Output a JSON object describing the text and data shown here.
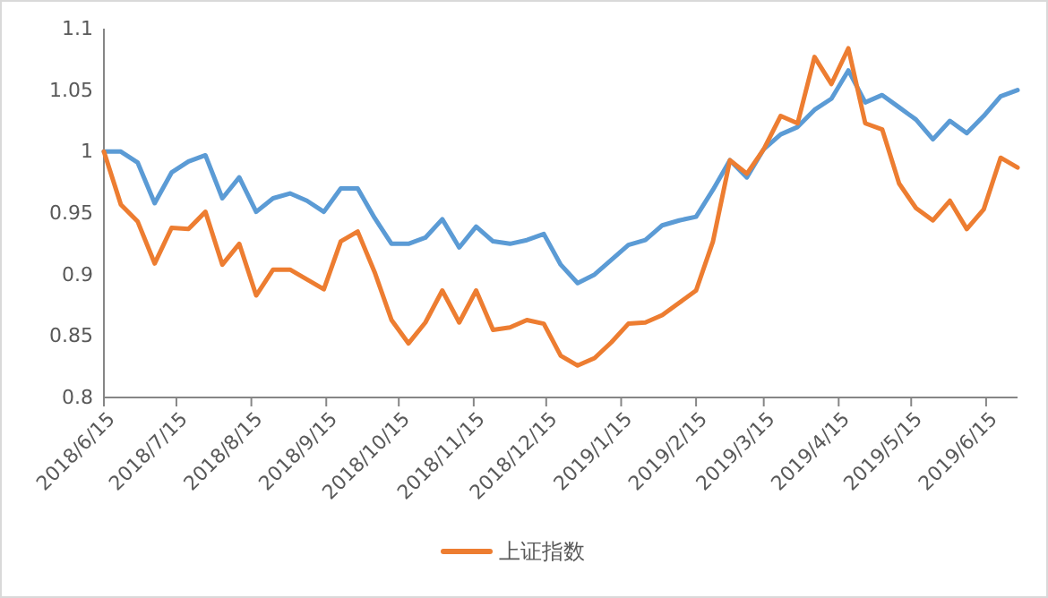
{
  "chart_data": {
    "type": "line",
    "x": [
      "2018-06-15",
      "2018-06-22",
      "2018-06-29",
      "2018-07-06",
      "2018-07-13",
      "2018-07-20",
      "2018-07-27",
      "2018-08-03",
      "2018-08-10",
      "2018-08-17",
      "2018-08-24",
      "2018-08-31",
      "2018-09-07",
      "2018-09-14",
      "2018-09-21",
      "2018-09-28",
      "2018-10-05",
      "2018-10-12",
      "2018-10-19",
      "2018-10-26",
      "2018-11-02",
      "2018-11-09",
      "2018-11-16",
      "2018-11-23",
      "2018-11-30",
      "2018-12-07",
      "2018-12-14",
      "2018-12-21",
      "2018-12-28",
      "2019-01-04",
      "2019-01-11",
      "2019-01-18",
      "2019-01-25",
      "2019-02-01",
      "2019-02-08",
      "2019-02-15",
      "2019-02-22",
      "2019-03-01",
      "2019-03-08",
      "2019-03-15",
      "2019-03-22",
      "2019-03-29",
      "2019-04-05",
      "2019-04-12",
      "2019-04-19",
      "2019-04-26",
      "2019-05-03",
      "2019-05-10",
      "2019-05-17",
      "2019-05-24",
      "2019-05-31",
      "2019-06-07",
      "2019-06-14",
      "2019-06-21",
      "2019-06-28"
    ],
    "series": [
      {
        "color": "#5b9bd5",
        "values": [
          1.0,
          1.0,
          0.991,
          0.958,
          0.983,
          0.992,
          0.997,
          0.962,
          0.979,
          0.951,
          0.962,
          0.966,
          0.96,
          0.951,
          0.97,
          0.97,
          0.946,
          0.925,
          0.925,
          0.93,
          0.945,
          0.922,
          0.939,
          0.927,
          0.925,
          0.928,
          0.933,
          0.908,
          0.893,
          0.9,
          0.912,
          0.924,
          0.928,
          0.94,
          0.944,
          0.947,
          0.969,
          0.993,
          0.979,
          1.002,
          1.014,
          1.02,
          1.034,
          1.043,
          1.066,
          1.04,
          1.046,
          1.036,
          1.026,
          1.01,
          1.025,
          1.015,
          1.029,
          1.045,
          1.05
        ]
      },
      {
        "name": "上证指数",
        "color": "#ed7d31",
        "values": [
          1.0,
          0.957,
          0.943,
          0.909,
          0.938,
          0.937,
          0.951,
          0.908,
          0.925,
          0.883,
          0.904,
          0.904,
          0.896,
          0.888,
          0.927,
          0.935,
          0.902,
          0.863,
          0.844,
          0.861,
          0.887,
          0.861,
          0.887,
          0.855,
          0.857,
          0.863,
          0.86,
          0.834,
          0.826,
          0.832,
          0.845,
          0.86,
          0.861,
          0.867,
          0.877,
          0.887,
          0.927,
          0.993,
          0.982,
          1.002,
          1.029,
          1.023,
          1.077,
          1.055,
          1.084,
          1.023,
          1.018,
          0.974,
          0.954,
          0.944,
          0.96,
          0.937,
          0.953,
          0.995,
          0.987
        ]
      }
    ],
    "xlim": [
      "2018-06-15",
      "2019-06-28"
    ],
    "xticks": [
      {
        "value": "2018-06-15",
        "label": "2018/6/15"
      },
      {
        "value": "2018-07-15",
        "label": "2018/7/15"
      },
      {
        "value": "2018-08-15",
        "label": "2018/8/15"
      },
      {
        "value": "2018-09-15",
        "label": "2018/9/15"
      },
      {
        "value": "2018-10-15",
        "label": "2018/10/15"
      },
      {
        "value": "2018-11-15",
        "label": "2018/11/15"
      },
      {
        "value": "2018-12-15",
        "label": "2018/12/15"
      },
      {
        "value": "2019-01-15",
        "label": "2019/1/15"
      },
      {
        "value": "2019-02-15",
        "label": "2019/2/15"
      },
      {
        "value": "2019-03-15",
        "label": "2019/3/15"
      },
      {
        "value": "2019-04-15",
        "label": "2019/4/15"
      },
      {
        "value": "2019-05-15",
        "label": "2019/5/15"
      },
      {
        "value": "2019-06-15",
        "label": "2019/6/15"
      }
    ],
    "ylim": [
      0.8,
      1.1
    ],
    "yticks": [
      0.8,
      0.85,
      0.9,
      0.95,
      1,
      1.05,
      1.1
    ],
    "grid": false,
    "legend": "bottom",
    "line_style": "solid",
    "marker": "none"
  }
}
